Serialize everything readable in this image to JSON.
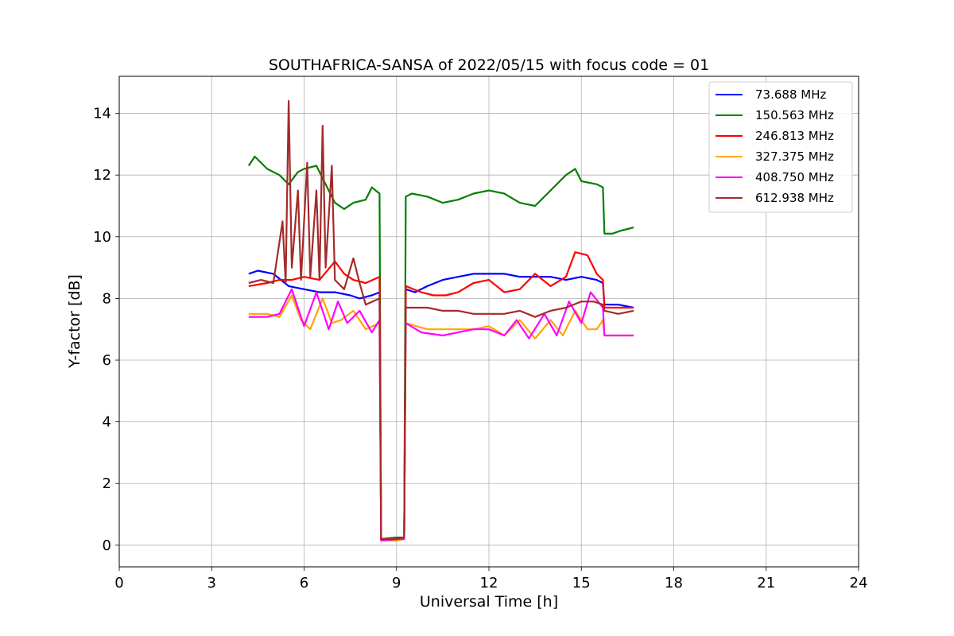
{
  "chart_data": {
    "type": "line",
    "title": "SOUTHAFRICA-SANSA of 2022/05/15 with focus code = 01",
    "xlabel": "Universal Time [h]",
    "ylabel": "Y-factor [dB]",
    "xlim": [
      0,
      24
    ],
    "ylim": [
      -0.7,
      15.2
    ],
    "xticks": [
      0,
      3,
      6,
      9,
      12,
      15,
      18,
      21,
      24
    ],
    "yticks": [
      0,
      2,
      4,
      6,
      8,
      10,
      12,
      14
    ],
    "grid": true,
    "legend_position": "top-right",
    "series": [
      {
        "name": " 73.688 MHz",
        "color": "#0000ff",
        "points": [
          [
            4.2,
            8.8
          ],
          [
            4.5,
            8.9
          ],
          [
            5.0,
            8.8
          ],
          [
            5.5,
            8.4
          ],
          [
            6.0,
            8.3
          ],
          [
            6.5,
            8.2
          ],
          [
            7.0,
            8.2
          ],
          [
            7.5,
            8.1
          ],
          [
            7.8,
            8.0
          ],
          [
            8.2,
            8.1
          ],
          [
            8.45,
            8.2
          ],
          [
            8.5,
            0.2
          ],
          [
            9.0,
            0.25
          ],
          [
            9.25,
            0.25
          ],
          [
            9.3,
            8.3
          ],
          [
            9.6,
            8.2
          ],
          [
            10.0,
            8.4
          ],
          [
            10.5,
            8.6
          ],
          [
            11.0,
            8.7
          ],
          [
            11.5,
            8.8
          ],
          [
            12.0,
            8.8
          ],
          [
            12.5,
            8.8
          ],
          [
            13.0,
            8.7
          ],
          [
            13.5,
            8.7
          ],
          [
            14.0,
            8.7
          ],
          [
            14.5,
            8.6
          ],
          [
            15.0,
            8.7
          ],
          [
            15.5,
            8.6
          ],
          [
            15.7,
            8.5
          ],
          [
            15.75,
            7.8
          ],
          [
            16.2,
            7.8
          ],
          [
            16.7,
            7.7
          ]
        ]
      },
      {
        "name": "150.563 MHz",
        "color": "#008000",
        "points": [
          [
            4.2,
            12.3
          ],
          [
            4.4,
            12.6
          ],
          [
            4.8,
            12.2
          ],
          [
            5.2,
            12.0
          ],
          [
            5.5,
            11.7
          ],
          [
            5.8,
            12.1
          ],
          [
            6.0,
            12.2
          ],
          [
            6.4,
            12.3
          ],
          [
            6.8,
            11.5
          ],
          [
            7.0,
            11.1
          ],
          [
            7.3,
            10.9
          ],
          [
            7.6,
            11.1
          ],
          [
            8.0,
            11.2
          ],
          [
            8.2,
            11.6
          ],
          [
            8.45,
            11.4
          ],
          [
            8.5,
            0.2
          ],
          [
            9.0,
            0.25
          ],
          [
            9.25,
            0.25
          ],
          [
            9.3,
            11.3
          ],
          [
            9.5,
            11.4
          ],
          [
            10.0,
            11.3
          ],
          [
            10.5,
            11.1
          ],
          [
            11.0,
            11.2
          ],
          [
            11.5,
            11.4
          ],
          [
            12.0,
            11.5
          ],
          [
            12.5,
            11.4
          ],
          [
            13.0,
            11.1
          ],
          [
            13.5,
            11.0
          ],
          [
            14.0,
            11.5
          ],
          [
            14.5,
            12.0
          ],
          [
            14.8,
            12.2
          ],
          [
            15.0,
            11.8
          ],
          [
            15.5,
            11.7
          ],
          [
            15.7,
            11.6
          ],
          [
            15.75,
            10.1
          ],
          [
            16.0,
            10.1
          ],
          [
            16.3,
            10.2
          ],
          [
            16.7,
            10.3
          ]
        ]
      },
      {
        "name": "246.813 MHz",
        "color": "#ff0000",
        "points": [
          [
            4.2,
            8.4
          ],
          [
            4.8,
            8.5
          ],
          [
            5.2,
            8.6
          ],
          [
            5.6,
            8.6
          ],
          [
            6.0,
            8.7
          ],
          [
            6.5,
            8.6
          ],
          [
            7.0,
            9.2
          ],
          [
            7.3,
            8.8
          ],
          [
            7.6,
            8.6
          ],
          [
            8.0,
            8.5
          ],
          [
            8.45,
            8.7
          ],
          [
            8.5,
            0.2
          ],
          [
            9.0,
            0.2
          ],
          [
            9.25,
            0.25
          ],
          [
            9.3,
            8.4
          ],
          [
            9.8,
            8.2
          ],
          [
            10.2,
            8.1
          ],
          [
            10.6,
            8.1
          ],
          [
            11.0,
            8.2
          ],
          [
            11.5,
            8.5
          ],
          [
            12.0,
            8.6
          ],
          [
            12.5,
            8.2
          ],
          [
            13.0,
            8.3
          ],
          [
            13.5,
            8.8
          ],
          [
            14.0,
            8.4
          ],
          [
            14.5,
            8.7
          ],
          [
            14.8,
            9.5
          ],
          [
            15.2,
            9.4
          ],
          [
            15.5,
            8.8
          ],
          [
            15.7,
            8.6
          ],
          [
            15.75,
            7.7
          ],
          [
            16.2,
            7.7
          ],
          [
            16.7,
            7.7
          ]
        ]
      },
      {
        "name": "327.375 MHz",
        "color": "#ffa500",
        "points": [
          [
            4.2,
            7.5
          ],
          [
            4.8,
            7.5
          ],
          [
            5.2,
            7.4
          ],
          [
            5.6,
            8.1
          ],
          [
            5.9,
            7.3
          ],
          [
            6.2,
            7.0
          ],
          [
            6.6,
            8.0
          ],
          [
            6.9,
            7.2
          ],
          [
            7.2,
            7.3
          ],
          [
            7.6,
            7.6
          ],
          [
            8.0,
            7.0
          ],
          [
            8.45,
            7.2
          ],
          [
            8.5,
            0.15
          ],
          [
            9.0,
            0.15
          ],
          [
            9.25,
            0.2
          ],
          [
            9.3,
            7.2
          ],
          [
            10.0,
            7.0
          ],
          [
            10.5,
            7.0
          ],
          [
            11.0,
            7.0
          ],
          [
            11.5,
            7.0
          ],
          [
            12.0,
            7.1
          ],
          [
            12.5,
            6.8
          ],
          [
            13.0,
            7.3
          ],
          [
            13.5,
            6.7
          ],
          [
            14.0,
            7.3
          ],
          [
            14.4,
            6.8
          ],
          [
            14.8,
            7.6
          ],
          [
            15.2,
            7.0
          ],
          [
            15.5,
            7.0
          ],
          [
            15.7,
            7.3
          ],
          [
            15.75,
            6.8
          ],
          [
            16.2,
            6.8
          ],
          [
            16.7,
            6.8
          ]
        ]
      },
      {
        "name": "408.750 MHz",
        "color": "#ff00ff",
        "points": [
          [
            4.2,
            7.4
          ],
          [
            4.8,
            7.4
          ],
          [
            5.2,
            7.5
          ],
          [
            5.6,
            8.3
          ],
          [
            6.0,
            7.1
          ],
          [
            6.4,
            8.2
          ],
          [
            6.8,
            7.0
          ],
          [
            7.1,
            7.9
          ],
          [
            7.4,
            7.2
          ],
          [
            7.8,
            7.6
          ],
          [
            8.2,
            6.9
          ],
          [
            8.45,
            7.3
          ],
          [
            8.5,
            0.15
          ],
          [
            9.0,
            0.2
          ],
          [
            9.25,
            0.2
          ],
          [
            9.3,
            7.2
          ],
          [
            9.8,
            6.9
          ],
          [
            10.5,
            6.8
          ],
          [
            11.0,
            6.9
          ],
          [
            11.5,
            7.0
          ],
          [
            12.0,
            7.0
          ],
          [
            12.5,
            6.8
          ],
          [
            12.9,
            7.3
          ],
          [
            13.3,
            6.7
          ],
          [
            13.8,
            7.5
          ],
          [
            14.2,
            6.8
          ],
          [
            14.6,
            7.9
          ],
          [
            15.0,
            7.2
          ],
          [
            15.3,
            8.2
          ],
          [
            15.7,
            7.7
          ],
          [
            15.75,
            6.8
          ],
          [
            16.2,
            6.8
          ],
          [
            16.7,
            6.8
          ]
        ]
      },
      {
        "name": "612.938 MHz",
        "color": "#a52a2a",
        "points": [
          [
            4.2,
            8.5
          ],
          [
            4.6,
            8.6
          ],
          [
            5.0,
            8.5
          ],
          [
            5.3,
            10.5
          ],
          [
            5.4,
            8.5
          ],
          [
            5.5,
            14.4
          ],
          [
            5.6,
            9.0
          ],
          [
            5.8,
            11.5
          ],
          [
            5.9,
            8.6
          ],
          [
            6.1,
            12.4
          ],
          [
            6.2,
            8.7
          ],
          [
            6.4,
            11.5
          ],
          [
            6.5,
            8.6
          ],
          [
            6.6,
            13.6
          ],
          [
            6.7,
            9.0
          ],
          [
            6.9,
            12.3
          ],
          [
            7.0,
            8.6
          ],
          [
            7.3,
            8.3
          ],
          [
            7.6,
            9.3
          ],
          [
            7.8,
            8.5
          ],
          [
            8.0,
            7.8
          ],
          [
            8.45,
            8.0
          ],
          [
            8.5,
            0.2
          ],
          [
            9.0,
            0.2
          ],
          [
            9.25,
            0.25
          ],
          [
            9.3,
            7.7
          ],
          [
            10.0,
            7.7
          ],
          [
            10.5,
            7.6
          ],
          [
            11.0,
            7.6
          ],
          [
            11.5,
            7.5
          ],
          [
            12.0,
            7.5
          ],
          [
            12.5,
            7.5
          ],
          [
            13.0,
            7.6
          ],
          [
            13.5,
            7.4
          ],
          [
            14.0,
            7.6
          ],
          [
            14.5,
            7.7
          ],
          [
            15.0,
            7.9
          ],
          [
            15.4,
            7.9
          ],
          [
            15.7,
            7.8
          ],
          [
            15.75,
            7.6
          ],
          [
            16.2,
            7.5
          ],
          [
            16.7,
            7.6
          ]
        ]
      }
    ]
  }
}
